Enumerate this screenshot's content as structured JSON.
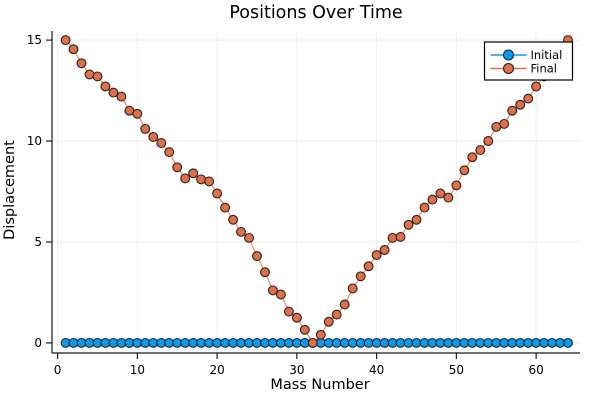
{
  "title": "Positions Over Time",
  "xlabel": "Mass Number",
  "ylabel": "Displacement",
  "legend": {
    "position": "top-right",
    "items": [
      {
        "label": "Initial",
        "color": "#0A9BF0"
      },
      {
        "label": "Final",
        "color": "#E36F47"
      }
    ]
  },
  "colors": {
    "initial": "#0A9BF0",
    "final": "#E36F47",
    "marker_stroke": "#222222",
    "grid": "#EDEDED",
    "axis": "#1A1A1A",
    "background": "#FFFFFF"
  },
  "chart_data": {
    "type": "line",
    "title": "Positions Over Time",
    "xlabel": "Mass Number",
    "ylabel": "Displacement",
    "grid": true,
    "legend_position": "top-right",
    "x_ticks": [
      0,
      10,
      20,
      30,
      40,
      50,
      60
    ],
    "y_ticks": [
      0,
      5,
      10,
      15
    ],
    "xlim": [
      -0.7,
      65.5
    ],
    "ylim": [
      -0.5,
      15.45
    ],
    "x": [
      1,
      2,
      3,
      4,
      5,
      6,
      7,
      8,
      9,
      10,
      11,
      12,
      13,
      14,
      15,
      16,
      17,
      18,
      19,
      20,
      21,
      22,
      23,
      24,
      25,
      26,
      27,
      28,
      29,
      30,
      31,
      32,
      33,
      34,
      35,
      36,
      37,
      38,
      39,
      40,
      41,
      42,
      43,
      44,
      45,
      46,
      47,
      48,
      49,
      50,
      51,
      52,
      53,
      54,
      55,
      56,
      57,
      58,
      59,
      60,
      61,
      62,
      63,
      64
    ],
    "series": [
      {
        "name": "Initial",
        "color": "#0A9BF0",
        "values": [
          0,
          0,
          0,
          0,
          0,
          0,
          0,
          0,
          0,
          0,
          0,
          0,
          0,
          0,
          0,
          0,
          0,
          0,
          0,
          0,
          0,
          0,
          0,
          0,
          0,
          0,
          0,
          0,
          0,
          0,
          0,
          0,
          0,
          0,
          0,
          0,
          0,
          0,
          0,
          0,
          0,
          0,
          0,
          0,
          0,
          0,
          0,
          0,
          0,
          0,
          0,
          0,
          0,
          0,
          0,
          0,
          0,
          0,
          0,
          0,
          0,
          0,
          0,
          0
        ]
      },
      {
        "name": "Final",
        "color": "#E36F47",
        "values": [
          15.0,
          14.55,
          13.85,
          13.3,
          13.2,
          12.7,
          12.4,
          12.2,
          11.5,
          11.35,
          10.6,
          10.2,
          9.9,
          9.45,
          8.7,
          8.15,
          8.4,
          8.1,
          8.0,
          7.4,
          6.7,
          6.1,
          5.5,
          5.2,
          4.3,
          3.5,
          2.6,
          2.4,
          1.55,
          1.25,
          0.65,
          0.0,
          0.4,
          1.05,
          1.4,
          1.9,
          2.7,
          3.3,
          3.8,
          4.35,
          4.6,
          5.2,
          5.25,
          5.85,
          6.1,
          6.7,
          7.1,
          7.4,
          7.2,
          7.8,
          8.55,
          9.2,
          9.55,
          10.0,
          10.7,
          10.85,
          11.5,
          11.8,
          12.1,
          12.7,
          13.2,
          13.75,
          14.4,
          15.0
        ]
      }
    ]
  }
}
